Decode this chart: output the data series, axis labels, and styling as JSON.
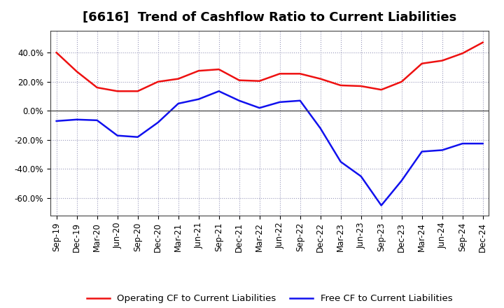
{
  "title": "[6616]  Trend of Cashflow Ratio to Current Liabilities",
  "x_labels": [
    "Sep-19",
    "Dec-19",
    "Mar-20",
    "Jun-20",
    "Sep-20",
    "Dec-20",
    "Mar-21",
    "Jun-21",
    "Sep-21",
    "Dec-21",
    "Mar-22",
    "Jun-22",
    "Sep-22",
    "Dec-22",
    "Mar-23",
    "Jun-23",
    "Sep-23",
    "Dec-23",
    "Mar-24",
    "Jun-24",
    "Sep-24",
    "Dec-24"
  ],
  "operating_cf": [
    40.0,
    27.0,
    16.0,
    13.5,
    13.5,
    20.0,
    22.0,
    27.5,
    28.5,
    21.0,
    20.5,
    25.5,
    25.5,
    22.0,
    17.5,
    17.0,
    14.5,
    20.0,
    32.5,
    34.5,
    39.5,
    47.0
  ],
  "free_cf": [
    -7.0,
    -6.0,
    -6.5,
    -17.0,
    -18.0,
    -8.0,
    5.0,
    8.0,
    13.5,
    7.0,
    2.0,
    6.0,
    7.0,
    -12.0,
    -35.0,
    -45.0,
    -65.0,
    -48.0,
    -28.0,
    -27.0,
    -22.5,
    -22.5
  ],
  "operating_color": "#ee1111",
  "free_color": "#1111ee",
  "ylim": [
    -72,
    55
  ],
  "yticks": [
    -60,
    -40,
    -20,
    0,
    20,
    40
  ],
  "background_color": "#ffffff",
  "grid_color": "#9999bb",
  "title_fontsize": 13,
  "tick_fontsize": 8.5,
  "legend_fontsize": 9.5
}
